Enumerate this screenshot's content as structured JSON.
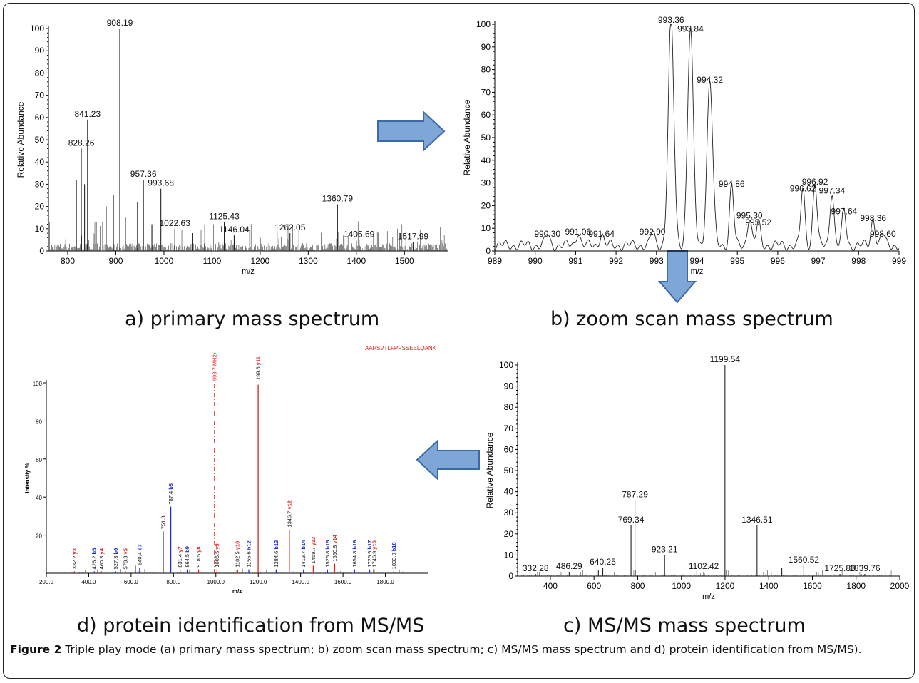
{
  "panel_captions": {
    "a": "a) primary mass spectrum",
    "b": "b) zoom scan mass spectrum",
    "c": "c) MS/MS mass spectrum",
    "d": "d) protein identification from MS/MS"
  },
  "figure_caption": {
    "label": "Figure 2",
    "text": "Triple play mode (a) primary mass spectrum; b) zoom scan mass spectrum; c) MS/MS mass spectrum and d) protein identification from MS/MS)."
  },
  "colors": {
    "arrow_fill": "#7ea7d8",
    "arrow_stroke": "#3c6aa6",
    "red": "#e02020",
    "blue": "#1a2fd0"
  },
  "chart_data": [
    {
      "id": "a",
      "type": "bar",
      "xlabel": "m/z",
      "ylabel": "Relative Abundance",
      "xlim": [
        760,
        1590
      ],
      "ylim": [
        0,
        100
      ],
      "xticks": [
        800,
        900,
        1000,
        1100,
        1200,
        1300,
        1400,
        1500
      ],
      "yticks": [
        0,
        10,
        20,
        30,
        40,
        50,
        60,
        70,
        80,
        90,
        100
      ],
      "peaks": [
        [
          818,
          32
        ],
        [
          828.26,
          46
        ],
        [
          835,
          30
        ],
        [
          841.23,
          59
        ],
        [
          880,
          20
        ],
        [
          895,
          25
        ],
        [
          908.19,
          100
        ],
        [
          920,
          15
        ],
        [
          945,
          22
        ],
        [
          957.36,
          32
        ],
        [
          975,
          12
        ],
        [
          993.68,
          28
        ],
        [
          1022.63,
          10
        ],
        [
          1060,
          8
        ],
        [
          1085,
          12
        ],
        [
          1125.43,
          13
        ],
        [
          1146.04,
          7
        ],
        [
          1200,
          6
        ],
        [
          1262.05,
          8
        ],
        [
          1360.79,
          21
        ],
        [
          1405.69,
          5
        ],
        [
          1517.99,
          4
        ]
      ],
      "labels": [
        [
          908.19,
          "908.19"
        ],
        [
          841.23,
          "841.23"
        ],
        [
          828.26,
          "828.26"
        ],
        [
          957.36,
          "957.36"
        ],
        [
          993.68,
          "993.68"
        ],
        [
          1022.63,
          "1022.63"
        ],
        [
          1125.43,
          "1125.43"
        ],
        [
          1146.04,
          "1146.04"
        ],
        [
          1262.05,
          "1262.05"
        ],
        [
          1360.79,
          "1360.79"
        ],
        [
          1405.69,
          "1405.69"
        ],
        [
          1517.99,
          "1517.99"
        ]
      ]
    },
    {
      "id": "b",
      "type": "line",
      "xlabel": "m/z",
      "ylabel": "Relative Abundance",
      "xlim": [
        989,
        999
      ],
      "ylim": [
        0,
        100
      ],
      "xticks": [
        989,
        990,
        991,
        992,
        993,
        994,
        995,
        996,
        997,
        998,
        999
      ],
      "yticks": [
        0,
        10,
        20,
        30,
        40,
        50,
        60,
        70,
        80,
        90,
        100
      ],
      "peaks": [
        [
          990.3,
          5
        ],
        [
          991.06,
          6
        ],
        [
          991.64,
          5
        ],
        [
          992.9,
          6
        ],
        [
          993.36,
          100
        ],
        [
          993.84,
          96
        ],
        [
          994.32,
          73
        ],
        [
          994.86,
          27
        ],
        [
          995.3,
          13
        ],
        [
          995.52,
          10
        ],
        [
          996.62,
          25
        ],
        [
          996.92,
          28
        ],
        [
          997.34,
          24
        ],
        [
          997.64,
          15
        ],
        [
          998.36,
          12
        ],
        [
          998.6,
          5
        ]
      ],
      "labels": [
        [
          993.36,
          "993.36"
        ],
        [
          993.84,
          "993.84"
        ],
        [
          994.32,
          "994.32"
        ],
        [
          994.86,
          "994.86"
        ],
        [
          995.3,
          "995.30"
        ],
        [
          995.52,
          "995.52"
        ],
        [
          996.62,
          "996.62"
        ],
        [
          996.92,
          "996.92"
        ],
        [
          997.34,
          "997.34"
        ],
        [
          997.64,
          "997.64"
        ],
        [
          998.36,
          "998.36"
        ],
        [
          998.6,
          "998.60"
        ],
        [
          990.3,
          "990.30"
        ],
        [
          991.06,
          "991.06"
        ],
        [
          991.64,
          "991.64"
        ],
        [
          992.9,
          "992.90"
        ]
      ]
    },
    {
      "id": "c",
      "type": "bar",
      "xlabel": "m/z",
      "ylabel": "Relative Abundance",
      "xlim": [
        250,
        2000
      ],
      "ylim": [
        0,
        100
      ],
      "xticks": [
        400,
        600,
        800,
        1000,
        1200,
        1400,
        1600,
        1800,
        2000
      ],
      "yticks": [
        0,
        10,
        20,
        30,
        40,
        50,
        60,
        70,
        80,
        90,
        100
      ],
      "peaks": [
        [
          332.28,
          1
        ],
        [
          486.29,
          2
        ],
        [
          620,
          3
        ],
        [
          640.25,
          4
        ],
        [
          769.34,
          24
        ],
        [
          787.29,
          36
        ],
        [
          923.21,
          10
        ],
        [
          1102.42,
          2
        ],
        [
          1199.54,
          100
        ],
        [
          1346.51,
          24
        ],
        [
          1460,
          4
        ],
        [
          1560.52,
          5
        ],
        [
          1725.83,
          1
        ],
        [
          1839.76,
          1
        ]
      ],
      "labels": [
        [
          1199.54,
          "1199.54"
        ],
        [
          787.29,
          "787.29"
        ],
        [
          769.34,
          "769.34"
        ],
        [
          923.21,
          "923.21"
        ],
        [
          1346.51,
          "1346.51"
        ],
        [
          640.25,
          "640.25"
        ],
        [
          1102.42,
          "1102.42"
        ],
        [
          1560.52,
          "1560.52"
        ],
        [
          1725.83,
          "1725.83"
        ],
        [
          1839.76,
          "1839.76"
        ],
        [
          332.28,
          "332.28"
        ],
        [
          486.29,
          "486.29"
        ]
      ]
    },
    {
      "id": "d",
      "type": "bar",
      "title": "AAPSVTLFPPSSEELQANK",
      "xlabel": "m/z",
      "ylabel": "intensity %",
      "xlim": [
        200,
        2000
      ],
      "ylim": [
        0,
        100
      ],
      "xticks": [
        "200.0",
        "400.0",
        "600.0",
        "800.0",
        "1000.0",
        "1200.0",
        "1400.0",
        "1600.0",
        "1800.0"
      ],
      "yticks": [
        "20",
        "40",
        "60",
        "80",
        "100"
      ],
      "peaks": [
        [
          332.2,
          "red",
          1
        ],
        [
          426.2,
          "blue",
          1
        ],
        [
          460.3,
          "red",
          1
        ],
        [
          527.3,
          "blue",
          1
        ],
        [
          573.3,
          "red",
          1
        ],
        [
          620,
          "black",
          4
        ],
        [
          640.4,
          "blue",
          3
        ],
        [
          751.3,
          "black",
          22
        ],
        [
          787.4,
          "blue",
          35
        ],
        [
          831.4,
          "red",
          2
        ],
        [
          864.5,
          "blue",
          2
        ],
        [
          918.5,
          "red",
          2
        ],
        [
          993.7,
          "red",
          100
        ],
        [
          1005.5,
          "red",
          2
        ],
        [
          1102.5,
          "red",
          2
        ],
        [
          1155.6,
          "blue",
          2
        ],
        [
          1199.6,
          "red",
          99
        ],
        [
          1284.6,
          "blue",
          2
        ],
        [
          1346.7,
          "red",
          23
        ],
        [
          1413.7,
          "blue",
          2
        ],
        [
          1459.7,
          "red",
          4
        ],
        [
          1526.8,
          "blue",
          2
        ],
        [
          1560.8,
          "red",
          5
        ],
        [
          1654.8,
          "blue",
          2
        ],
        [
          1725.9,
          "blue",
          2
        ],
        [
          1746.9,
          "red",
          2
        ],
        [
          1839.9,
          "black",
          1
        ]
      ],
      "labels": [
        {
          "x": 332.2,
          "text": "332.2",
          "ion": "y3",
          "color": "red"
        },
        {
          "x": 426.2,
          "text": "426.2",
          "ion": "b5",
          "color": "blue"
        },
        {
          "x": 460.3,
          "text": "460.3",
          "ion": "y4",
          "color": "red"
        },
        {
          "x": 527.3,
          "text": "527.3",
          "ion": "b6",
          "color": "blue"
        },
        {
          "x": 573.3,
          "text": "573.3",
          "ion": "y5",
          "color": "red"
        },
        {
          "x": 640.4,
          "text": "640.4",
          "ion": "b7",
          "color": "blue"
        },
        {
          "x": 751.3,
          "text": "751.3",
          "ion": "",
          "color": "black"
        },
        {
          "x": 787.4,
          "text": "787.4",
          "ion": "b8",
          "color": "blue"
        },
        {
          "x": 831.4,
          "text": "831.4",
          "ion": "y7",
          "color": "red"
        },
        {
          "x": 864.5,
          "text": "864.5",
          "ion": "b9",
          "color": "blue"
        },
        {
          "x": 918.5,
          "text": "918.5",
          "ion": "y8",
          "color": "red"
        },
        {
          "x": 993.7,
          "text": "993.7 MH2+",
          "ion": "",
          "color": "red"
        },
        {
          "x": 1005.5,
          "text": "1005.5",
          "ion": "y9",
          "color": "red"
        },
        {
          "x": 1102.5,
          "text": "1102.5",
          "ion": "y10",
          "color": "red"
        },
        {
          "x": 1155.6,
          "text": "1155.6",
          "ion": "b12",
          "color": "blue"
        },
        {
          "x": 1199.6,
          "text": "1199.6",
          "ion": "y11",
          "color": "red"
        },
        {
          "x": 1284.6,
          "text": "1284.6",
          "ion": "b13",
          "color": "blue"
        },
        {
          "x": 1346.7,
          "text": "1346.7",
          "ion": "y12",
          "color": "red"
        },
        {
          "x": 1413.7,
          "text": "1413.7",
          "ion": "b14",
          "color": "blue"
        },
        {
          "x": 1459.7,
          "text": "1459.7",
          "ion": "y13",
          "color": "red"
        },
        {
          "x": 1526.8,
          "text": "1526.8",
          "ion": "b15",
          "color": "blue"
        },
        {
          "x": 1560.8,
          "text": "1560.8",
          "ion": "y14",
          "color": "red"
        },
        {
          "x": 1654.8,
          "text": "1654.8",
          "ion": "b16",
          "color": "blue"
        },
        {
          "x": 1725.9,
          "text": "1725.9",
          "ion": "b17",
          "color": "blue"
        },
        {
          "x": 1746.9,
          "text": "1746.9",
          "ion": "y16",
          "color": "red"
        },
        {
          "x": 1839.9,
          "text": "1839.9",
          "ion": "b18",
          "color": "blue"
        }
      ]
    }
  ]
}
